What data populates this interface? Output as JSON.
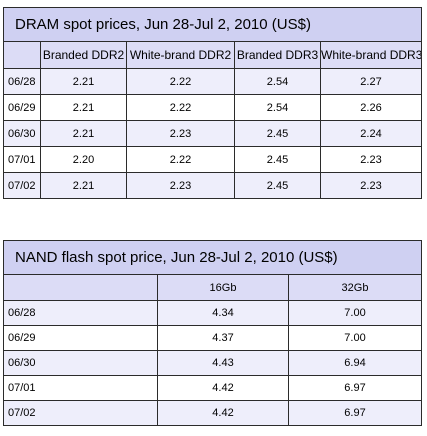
{
  "dram": {
    "title": "DRAM spot prices, Jun 28-Jul 2, 2010 (US$)",
    "columns": [
      "",
      "Branded DDR2",
      "White-brand DDR2",
      "Branded DDR3",
      "White-brand DDR3"
    ],
    "rows": [
      {
        "date": "06/28",
        "values": [
          "2.21",
          "2.22",
          "2.54",
          "2.27"
        ]
      },
      {
        "date": "06/29",
        "values": [
          "2.21",
          "2.22",
          "2.54",
          "2.26"
        ]
      },
      {
        "date": "06/30",
        "values": [
          "2.21",
          "2.23",
          "2.45",
          "2.24"
        ]
      },
      {
        "date": "07/01",
        "values": [
          "2.20",
          "2.22",
          "2.45",
          "2.23"
        ]
      },
      {
        "date": "07/02",
        "values": [
          "2.21",
          "2.23",
          "2.45",
          "2.23"
        ]
      }
    ]
  },
  "nand": {
    "title": "NAND flash spot price, Jun 28-Jul 2, 2010 (US$)",
    "columns": [
      "",
      "16Gb",
      "32Gb"
    ],
    "rows": [
      {
        "date": "06/28",
        "values": [
          "4.34",
          "7.00"
        ]
      },
      {
        "date": "06/29",
        "values": [
          "4.37",
          "7.00"
        ]
      },
      {
        "date": "06/30",
        "values": [
          "4.43",
          "6.94"
        ]
      },
      {
        "date": "07/01",
        "values": [
          "4.42",
          "6.97"
        ]
      },
      {
        "date": "07/02",
        "values": [
          "4.42",
          "6.97"
        ]
      }
    ]
  },
  "colors": {
    "title_background": "#cfd0f2",
    "header_background": "#dcdcf6",
    "alternate_row_background": "#eeeefb",
    "border": "#2b2b2b"
  }
}
